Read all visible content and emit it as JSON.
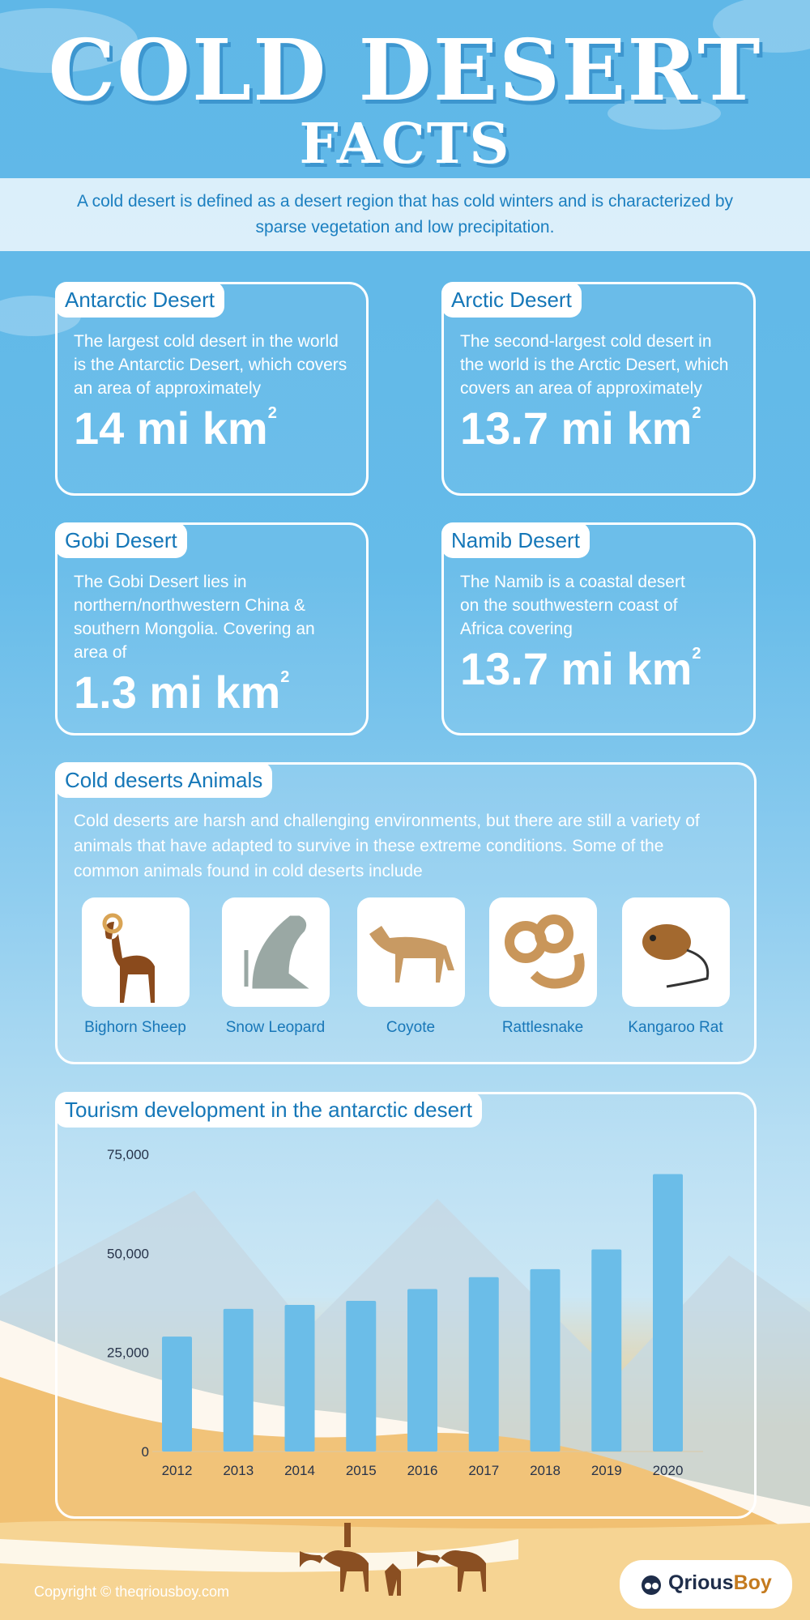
{
  "header": {
    "title_line1": "COLD DESERT",
    "title_line2": "FACTS",
    "intro": "A cold desert is defined as a desert region that has cold winters and is characterized by sparse vegetation and low precipitation."
  },
  "cards": [
    {
      "title": "Antarctic Desert",
      "text": "The largest cold desert in the world is the Antarctic Desert, which covers an area of approximately",
      "value": "14 mi km",
      "sup": "2"
    },
    {
      "title": "Arctic Desert",
      "text": "The second-largest cold desert in the world is the Arctic Desert, which covers an area of approximately",
      "value": "13.7 mi km",
      "sup": "2"
    },
    {
      "title": "Gobi Desert",
      "text": "The Gobi Desert lies in northern/northwestern China & southern Mongolia. Covering an area of",
      "value": "1.3 mi km",
      "sup": "2"
    },
    {
      "title": "Namib Desert",
      "text": "The Namib is a coastal desert on the southwestern coast of Africa covering",
      "value": "13.7 mi km",
      "sup": "2"
    }
  ],
  "animals": {
    "title": "Cold deserts Animals",
    "text": "Cold deserts are harsh and challenging environments, but there are still a variety of animals that have adapted to survive in these extreme conditions. Some of the common animals found in cold deserts include",
    "items": [
      {
        "label": "Bighorn Sheep",
        "icon": "bighorn-sheep"
      },
      {
        "label": "Snow Leopard",
        "icon": "snow-leopard"
      },
      {
        "label": "Coyote",
        "icon": "coyote"
      },
      {
        "label": "Rattlesnake",
        "icon": "rattlesnake"
      },
      {
        "label": "Kangaroo Rat",
        "icon": "kangaroo-rat"
      }
    ]
  },
  "chart_data": {
    "type": "bar",
    "title": "Tourism development in the antarctic desert",
    "categories": [
      "2012",
      "2013",
      "2014",
      "2015",
      "2016",
      "2017",
      "2018",
      "2019",
      "2020"
    ],
    "values": [
      29000,
      36000,
      37000,
      38000,
      41000,
      44000,
      46000,
      51000,
      70000
    ],
    "yticks": [
      "0",
      "25,000",
      "50,000",
      "75,000"
    ],
    "ylim": [
      0,
      75000
    ],
    "bar_color": "#6bbde8",
    "grid": false
  },
  "footer": {
    "copyright": "Copyright © theqriousboy.com",
    "logo_part1": "Qrious",
    "logo_part2": "Boy"
  }
}
